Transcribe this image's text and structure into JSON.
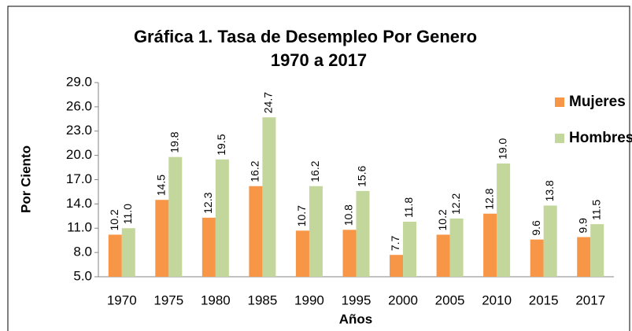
{
  "chart_data": {
    "type": "bar",
    "title": [
      "Gráfica 1. Tasa de Desempleo Por Genero",
      "1970 a 2017"
    ],
    "x_label": "Años",
    "y_label": "Por Ciento",
    "categories": [
      "1970",
      "1975",
      "1980",
      "1985",
      "1990",
      "1995",
      "2000",
      "2005",
      "2010",
      "2015",
      "2017"
    ],
    "series": [
      {
        "name": "Mujeres",
        "color": "#f79646",
        "values": [
          10.2,
          14.5,
          12.3,
          16.2,
          10.7,
          10.8,
          7.7,
          10.2,
          12.8,
          9.6,
          9.9
        ],
        "value_labels": [
          "10.2",
          "14.5",
          "12.3",
          "16.2",
          "10.7",
          "10.8",
          "7.7",
          "10.2",
          "12.8",
          "9.6",
          "9.9"
        ]
      },
      {
        "name": "Hombres",
        "color": "#c3d69b",
        "values": [
          11.0,
          19.8,
          19.5,
          24.7,
          16.2,
          15.6,
          11.8,
          12.2,
          19.0,
          13.8,
          11.5
        ],
        "value_labels": [
          "11.0",
          "19.8",
          "19.5",
          "24.7",
          "16.2",
          "15.6",
          "11.8",
          "12.2",
          "19.0",
          "13.8",
          "11.5"
        ]
      }
    ],
    "ylim": [
      5,
      29
    ],
    "yticks": [
      {
        "value": 5,
        "label": "5.0"
      },
      {
        "value": 8,
        "label": "8.0"
      },
      {
        "value": 11,
        "label": "11.0"
      },
      {
        "value": 14,
        "label": "14.0"
      },
      {
        "value": 17,
        "label": "17.0"
      },
      {
        "value": 20,
        "label": "20.0"
      },
      {
        "value": 23,
        "label": "23.0"
      },
      {
        "value": 26,
        "label": "26.0"
      },
      {
        "value": 29,
        "label": "29.0"
      }
    ],
    "legend": "top-right",
    "grid": false
  }
}
